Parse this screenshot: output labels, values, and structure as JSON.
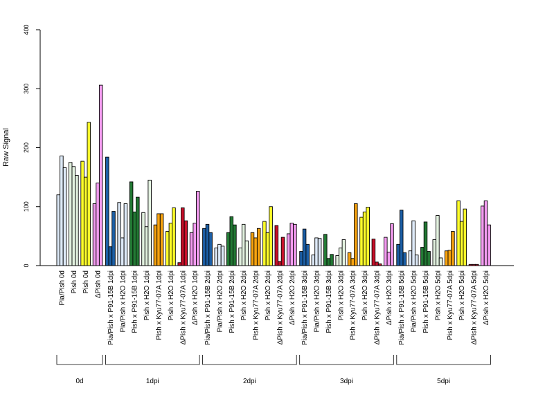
{
  "chart_data": {
    "type": "bar",
    "ylabel": "Raw Signal",
    "ylim": [
      0,
      400
    ],
    "yticks": [
      0,
      100,
      200,
      300,
      400
    ],
    "grid": false,
    "groups": [
      {
        "name": "0d",
        "bars": [
          {
            "label": "Pia/Pish 0d",
            "color": "#dde9f7",
            "values": [
              120,
              186,
              166
            ]
          },
          {
            "label": "Pish 0d",
            "color": "#e3f2e0",
            "values": [
              175,
              168,
              153
            ]
          },
          {
            "label": "Pish 0d",
            "color": "#ffff2a",
            "values": [
              177,
              150,
              243
            ]
          },
          {
            "label": "ΔPish 0d",
            "color": "#f39bf0",
            "values": [
              105,
              140,
              306
            ]
          }
        ]
      },
      {
        "name": "1dpi",
        "bars": [
          {
            "label": "Pia/Pish x P91-15B 1dpi",
            "color": "#1c5fa6",
            "values": [
              184,
              32,
              92
            ]
          },
          {
            "label": "Pia/Pish x H2O 1dpi",
            "color": "#dde9f7",
            "values": [
              107,
              47,
              105
            ]
          },
          {
            "label": "Pish x P91-15B 1dpi",
            "color": "#237a35",
            "values": [
              142,
              91,
              116
            ]
          },
          {
            "label": "Pish x H2O 1dpi",
            "color": "#e3f2e0",
            "values": [
              90,
              66,
              145
            ]
          },
          {
            "label": "Pish x Kyu77-07A 1dpi",
            "color": "#f7a310",
            "values": [
              69,
              88,
              88
            ]
          },
          {
            "label": "Pish x H2O 1dpi",
            "color": "#ffff2a",
            "values": [
              58,
              72,
              98
            ]
          },
          {
            "label": "ΔPish x Kyu77-07A 1dpi",
            "color": "#c8102a",
            "values": [
              5,
              98,
              76
            ]
          },
          {
            "label": "ΔPish x H2O 1dpi",
            "color": "#f39bf0",
            "values": [
              56,
              72,
              126
            ]
          }
        ]
      },
      {
        "name": "2dpi",
        "bars": [
          {
            "label": "Pia/Pish x P91-15B 2dpi",
            "color": "#1c5fa6",
            "values": [
              63,
              70,
              56
            ]
          },
          {
            "label": "Pia/Pish x H2O 2dpi",
            "color": "#dde9f7",
            "values": [
              30,
              36,
              33
            ]
          },
          {
            "label": "Pish x P91-15B 2dpi",
            "color": "#237a35",
            "values": [
              56,
              83,
              69
            ]
          },
          {
            "label": "Pish x H2O 2dpi",
            "color": "#e3f2e0",
            "values": [
              30,
              70,
              42
            ]
          },
          {
            "label": "Pish x Kyu77-07A 2dpi",
            "color": "#f7a310",
            "values": [
              56,
              47,
              63
            ]
          },
          {
            "label": "Pish x H2O 2dpi",
            "color": "#ffff2a",
            "values": [
              75,
              56,
              100
            ]
          },
          {
            "label": "ΔPish x Kyu77-07A 2dpi",
            "color": "#c8102a",
            "values": [
              68,
              7,
              48
            ]
          },
          {
            "label": "ΔPish x H2O 2dpi",
            "color": "#f39bf0",
            "values": [
              54,
              72,
              70
            ]
          }
        ]
      },
      {
        "name": "3dpi",
        "bars": [
          {
            "label": "Pia/Pish x P91-15B 3dpi",
            "color": "#1c5fa6",
            "values": [
              24,
              62,
              36
            ]
          },
          {
            "label": "Pia/Pish x H2O 3dpi",
            "color": "#dde9f7",
            "values": [
              18,
              47,
              46
            ]
          },
          {
            "label": "Pish x P91-15B 3dpi",
            "color": "#237a35",
            "values": [
              53,
              12,
              19
            ]
          },
          {
            "label": "Pish x H2O 3dpi",
            "color": "#e3f2e0",
            "values": [
              17,
              30,
              44
            ]
          },
          {
            "label": "Pish x Kyu77-07A 3dpi",
            "color": "#f7a310",
            "values": [
              22,
              12,
              105
            ]
          },
          {
            "label": "Pish x H2O 3dpi",
            "color": "#ffff2a",
            "values": [
              82,
              91,
              99
            ]
          },
          {
            "label": "ΔPish x Kyu77-07A 3dpi",
            "color": "#c8102a",
            "values": [
              45,
              6,
              3
            ]
          },
          {
            "label": "ΔPish x H2O 3dpi",
            "color": "#f39bf0",
            "values": [
              48,
              23,
              71
            ]
          }
        ]
      },
      {
        "name": "5dpi",
        "bars": [
          {
            "label": "Pia/Pish x P91-15B 5dpi",
            "color": "#1c5fa6",
            "values": [
              36,
              94,
              22
            ]
          },
          {
            "label": "Pia/Pish x H2O 5dpi",
            "color": "#dde9f7",
            "values": [
              25,
              76,
              18
            ]
          },
          {
            "label": "Pish x P91-15B 5dpi",
            "color": "#237a35",
            "values": [
              31,
              74,
              24
            ]
          },
          {
            "label": "Pish x H2O 5dpi",
            "color": "#e3f2e0",
            "values": [
              44,
              85,
              13
            ]
          },
          {
            "label": "Pish x Kyu77-07A 5dpi",
            "color": "#f7a310",
            "values": [
              25,
              26,
              58
            ]
          },
          {
            "label": "Pish x H2O 5dpi",
            "color": "#ffff2a",
            "values": [
              110,
              75,
              96
            ]
          },
          {
            "label": "ΔPish x Kyu77-07A 5dpi",
            "color": "#c8102a",
            "values": [
              2,
              2,
              2
            ]
          },
          {
            "label": "ΔPish x H2O 5dpi",
            "color": "#f39bf0",
            "values": [
              101,
              110,
              69
            ]
          }
        ]
      }
    ]
  }
}
